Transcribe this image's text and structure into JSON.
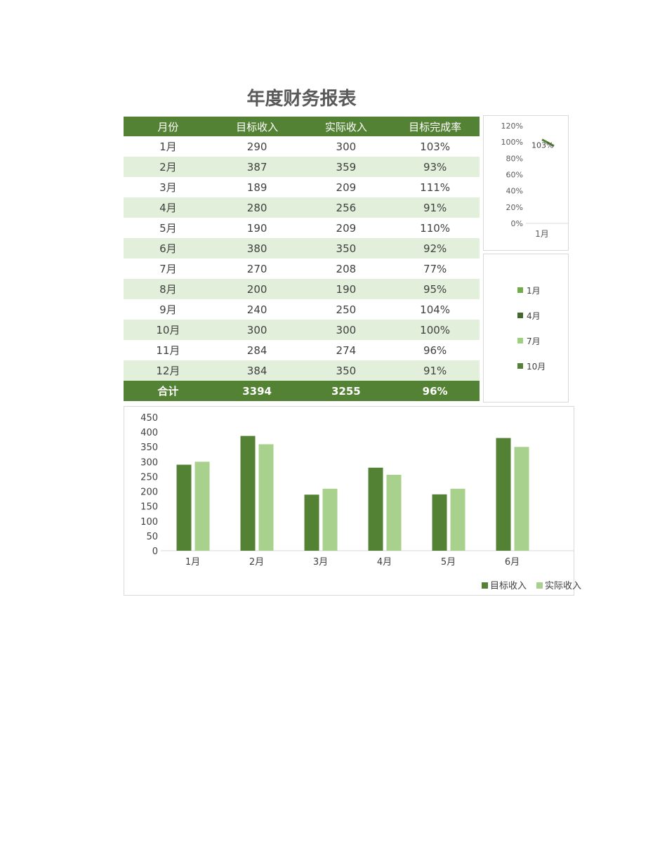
{
  "title": "年度财务报表",
  "table": {
    "headers": [
      "月份",
      "目标收入",
      "实际收入",
      "目标完成率"
    ],
    "rows": [
      [
        "1月",
        "290",
        "300",
        "103%"
      ],
      [
        "2月",
        "387",
        "359",
        "93%"
      ],
      [
        "3月",
        "189",
        "209",
        "111%"
      ],
      [
        "4月",
        "280",
        "256",
        "91%"
      ],
      [
        "5月",
        "190",
        "209",
        "110%"
      ],
      [
        "6月",
        "380",
        "350",
        "92%"
      ],
      [
        "7月",
        "270",
        "208",
        "77%"
      ],
      [
        "8月",
        "200",
        "190",
        "95%"
      ],
      [
        "9月",
        "240",
        "250",
        "104%"
      ],
      [
        "10月",
        "300",
        "300",
        "100%"
      ],
      [
        "11月",
        "284",
        "274",
        "96%"
      ],
      [
        "12月",
        "384",
        "350",
        "91%"
      ]
    ],
    "total": [
      "合计",
      "3394",
      "3255",
      "96%"
    ]
  },
  "colors": {
    "header": "#548235",
    "stripe": "#E2EFDA",
    "target": "#548235",
    "actual": "#A9D18E"
  },
  "chart_data": [
    {
      "type": "line",
      "yticks": [
        "120%",
        "100%",
        "80%",
        "60%",
        "40%",
        "20%",
        "0%"
      ],
      "ylim": [
        0,
        1.2
      ],
      "categories": [
        "1月"
      ],
      "values": [
        1.03
      ],
      "data_labels": [
        "103%"
      ]
    },
    {
      "type": "pie",
      "legend": [
        {
          "label": "1月",
          "color": "#70AD47"
        },
        {
          "label": "4月",
          "color": "#43682B"
        },
        {
          "label": "7月",
          "color": "#9BD17C"
        },
        {
          "label": "10月",
          "color": "#548235"
        }
      ]
    },
    {
      "type": "bar",
      "categories": [
        "1月",
        "2月",
        "3月",
        "4月",
        "5月",
        "6月"
      ],
      "series": [
        {
          "name": "目标收入",
          "values": [
            290,
            387,
            189,
            280,
            190,
            380
          ]
        },
        {
          "name": "实际收入",
          "values": [
            300,
            359,
            209,
            256,
            209,
            350
          ]
        }
      ],
      "yticks": [
        "450",
        "400",
        "350",
        "300",
        "250",
        "200",
        "150",
        "100",
        "50",
        "0"
      ],
      "ylim": [
        0,
        450
      ],
      "legend": "bottom-right"
    }
  ]
}
